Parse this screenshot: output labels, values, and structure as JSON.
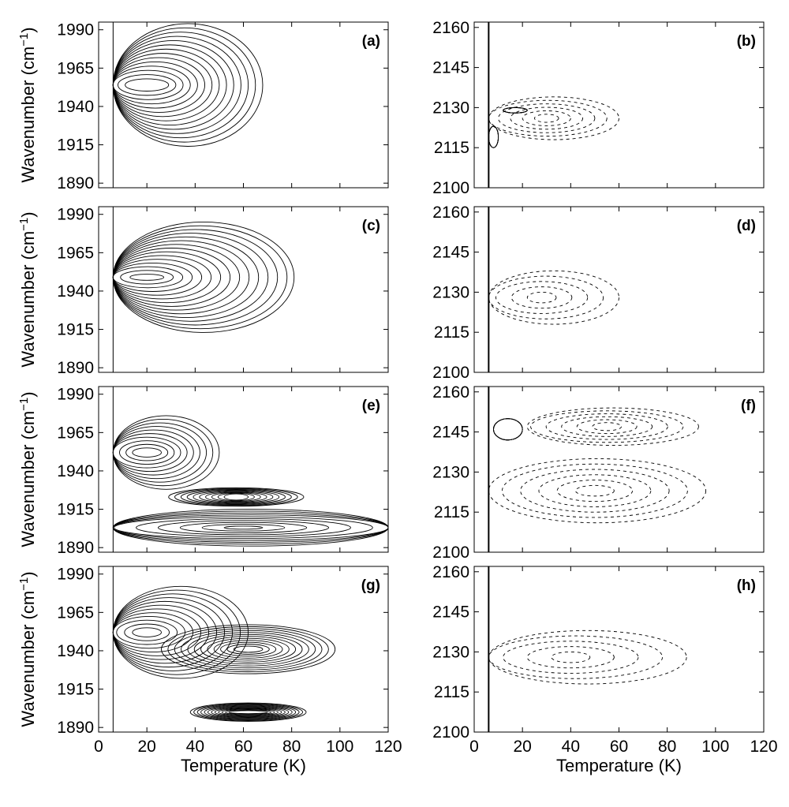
{
  "figure": {
    "ylabel": "Wavenumber (cm",
    "ylabel_sup": "−1",
    "ylabel_close": ")",
    "xlabel": "Temperature (K)"
  },
  "chart_data": [
    {
      "panel": "(a)",
      "type": "contour",
      "xlim": [
        0,
        120
      ],
      "ylim": [
        1887,
        1995
      ],
      "xticks": [
        0,
        20,
        40,
        60,
        80,
        100,
        120
      ],
      "yticks": [
        1890,
        1915,
        1940,
        1965,
        1990
      ],
      "dashed": false,
      "rings": 14,
      "blobs": [
        {
          "x": 20,
          "y": 1954,
          "rx": 9,
          "ry": 4,
          "Rx": 48,
          "Ry": 40,
          "x0": 6,
          "xmax": 68
        }
      ]
    },
    {
      "panel": "(b)",
      "type": "contour",
      "xlim": [
        0,
        120
      ],
      "ylim": [
        2100,
        2162
      ],
      "xticks": [
        0,
        20,
        40,
        60,
        80,
        100,
        120
      ],
      "yticks": [
        2100,
        2115,
        2130,
        2145,
        2160
      ],
      "dashed": true,
      "rings": 6,
      "blobs": [
        {
          "x": 30,
          "y": 2126,
          "rx": 5,
          "ry": 1.5,
          "Rx": 30,
          "Ry": 8,
          "x0": 6,
          "xmax": 62
        }
      ],
      "solid": [
        {
          "x": 17,
          "y": 2129,
          "rx": 5,
          "ry": 1
        },
        {
          "x": 8,
          "y": 2119,
          "rx": 2,
          "ry": 4
        }
      ]
    },
    {
      "panel": "(c)",
      "type": "contour",
      "xlim": [
        0,
        120
      ],
      "ylim": [
        1887,
        1995
      ],
      "xticks": [
        0,
        20,
        40,
        60,
        80,
        100,
        120
      ],
      "yticks": [
        1890,
        1915,
        1940,
        1965,
        1990
      ],
      "dashed": false,
      "rings": 15,
      "blobs": [
        {
          "x": 20,
          "y": 1949,
          "rx": 7,
          "ry": 2,
          "Rx": 62,
          "Ry": 36,
          "x0": 6,
          "xmax": 81
        }
      ]
    },
    {
      "panel": "(d)",
      "type": "contour",
      "xlim": [
        0,
        120
      ],
      "ylim": [
        2100,
        2162
      ],
      "xticks": [
        0,
        20,
        40,
        60,
        80,
        100,
        120
      ],
      "yticks": [
        2100,
        2115,
        2130,
        2145,
        2160
      ],
      "dashed": true,
      "rings": 5,
      "blobs": [
        {
          "x": 28,
          "y": 2128,
          "rx": 6,
          "ry": 2,
          "Rx": 32,
          "Ry": 10,
          "x0": 6,
          "xmax": 60
        }
      ]
    },
    {
      "panel": "(e)",
      "type": "contour",
      "xlim": [
        0,
        120
      ],
      "ylim": [
        1887,
        1995
      ],
      "xticks": [
        0,
        20,
        40,
        60,
        80,
        100,
        120
      ],
      "yticks": [
        1890,
        1915,
        1940,
        1965,
        1990
      ],
      "dashed": false,
      "rings": 10,
      "blobs": [
        {
          "x": 20,
          "y": 1952,
          "rx": 6,
          "ry": 3,
          "Rx": 30,
          "Ry": 24,
          "x0": 6,
          "xmax": 70
        },
        {
          "x": 60,
          "y": 1903,
          "rx": 8,
          "ry": 1,
          "Rx": 90,
          "Ry": 12,
          "x0": 6,
          "xmax": 120
        },
        {
          "x": 57,
          "y": 1923,
          "rx": 5,
          "ry": 2,
          "Rx": 28,
          "Ry": 6,
          "x0": 6,
          "xmax": 120
        }
      ]
    },
    {
      "panel": "(f)",
      "type": "contour",
      "xlim": [
        0,
        120
      ],
      "ylim": [
        2100,
        2162
      ],
      "xticks": [
        0,
        20,
        40,
        60,
        80,
        100,
        120
      ],
      "yticks": [
        2100,
        2115,
        2130,
        2145,
        2160
      ],
      "dashed": true,
      "rings": 6,
      "blobs": [
        {
          "x": 55,
          "y": 2147,
          "rx": 6,
          "ry": 1.5,
          "Rx": 38,
          "Ry": 7,
          "x0": 22,
          "xmax": 93
        },
        {
          "x": 50,
          "y": 2123,
          "rx": 8,
          "ry": 2,
          "Rx": 46,
          "Ry": 12,
          "x0": 6,
          "xmax": 97
        }
      ],
      "solid": [
        {
          "x": 14,
          "y": 2146,
          "rx": 6,
          "ry": 4
        }
      ]
    },
    {
      "panel": "(g)",
      "type": "contour",
      "xlim": [
        0,
        120
      ],
      "ylim": [
        1887,
        1995
      ],
      "xticks": [
        0,
        20,
        40,
        60,
        80,
        100,
        120
      ],
      "yticks": [
        1890,
        1915,
        1940,
        1965,
        1990
      ],
      "dashed": false,
      "rings": 12,
      "blobs": [
        {
          "x": 20,
          "y": 1952,
          "rx": 6,
          "ry": 3,
          "Rx": 42,
          "Ry": 30,
          "x0": 6,
          "xmax": 98
        },
        {
          "x": 62,
          "y": 1941,
          "rx": 6,
          "ry": 2,
          "Rx": 36,
          "Ry": 16,
          "x0": 6,
          "xmax": 98
        },
        {
          "x": 62,
          "y": 1900,
          "rx": 8,
          "ry": 1,
          "Rx": 24,
          "Ry": 6,
          "x0": 22,
          "xmax": 100
        }
      ]
    },
    {
      "panel": "(h)",
      "type": "contour",
      "xlim": [
        0,
        120
      ],
      "ylim": [
        2100,
        2162
      ],
      "xticks": [
        0,
        20,
        40,
        60,
        80,
        100,
        120
      ],
      "yticks": [
        2100,
        2115,
        2130,
        2145,
        2160
      ],
      "dashed": true,
      "rings": 5,
      "blobs": [
        {
          "x": 40,
          "y": 2128,
          "rx": 8,
          "ry": 2,
          "Rx": 48,
          "Ry": 10,
          "x0": 6,
          "xmax": 88
        }
      ]
    }
  ]
}
